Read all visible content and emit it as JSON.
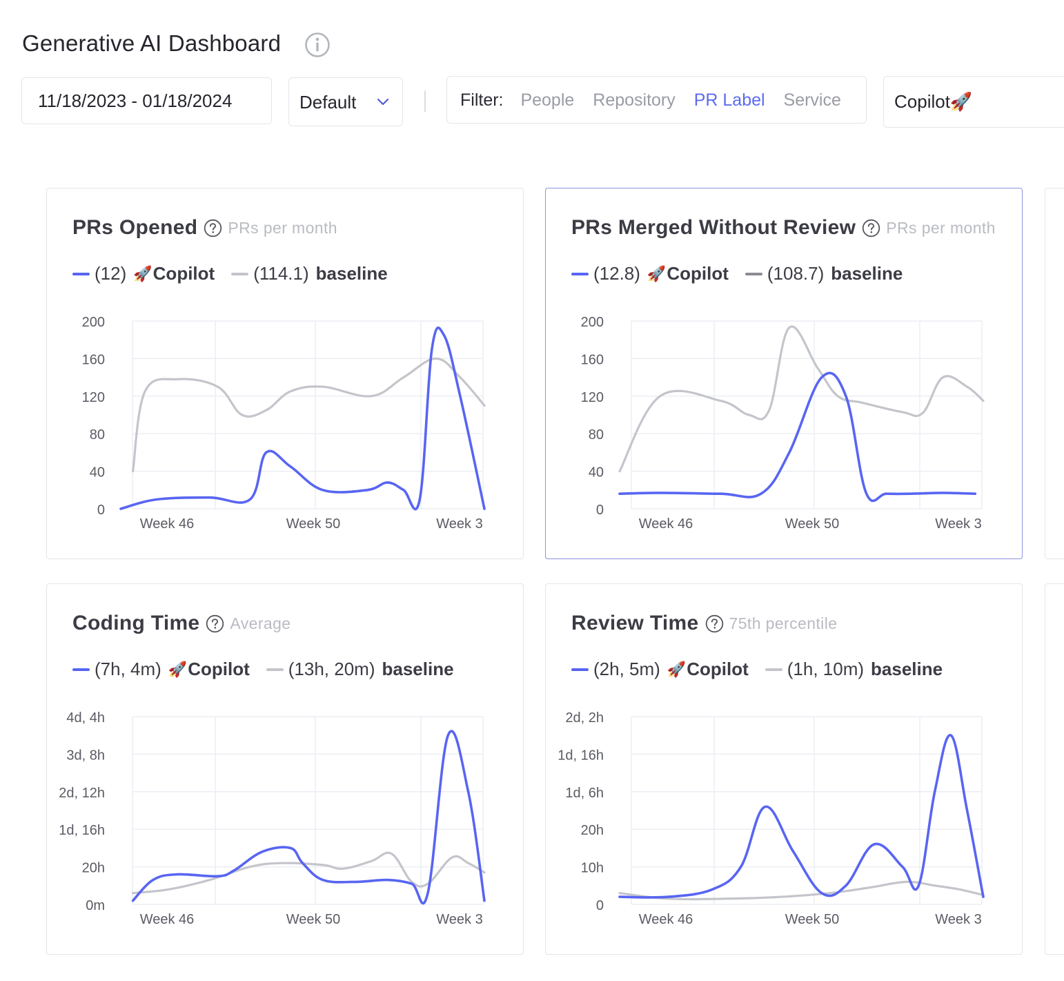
{
  "header": {
    "title": "Generative AI Dashboard",
    "date_range": "11/18/2023 - 01/18/2024",
    "preset": "Default",
    "filter_label": "Filter:",
    "filter_tabs": [
      "People",
      "Repository",
      "PR Label",
      "Service"
    ],
    "active_filter": "PR Label",
    "selected_label": "Copilot🚀"
  },
  "colors": {
    "copilot": "#5865f2",
    "baseline": "#c4c5cb",
    "accent": "#5c6bf0"
  },
  "cards": [
    {
      "title": "PRs Opened",
      "subtitle": "PRs per month",
      "selected": false,
      "legend": [
        {
          "value": "(12)",
          "name": "Copilot",
          "emoji": "🚀",
          "color": "#5865f2"
        },
        {
          "value": "(114.1)",
          "name": "baseline",
          "emoji": "",
          "color": "#c4c5cb"
        }
      ]
    },
    {
      "title": "PRs Merged Without Review",
      "subtitle": "PRs per month",
      "selected": true,
      "legend": [
        {
          "value": "(12.8)",
          "name": "Copilot",
          "emoji": "🚀",
          "color": "#5865f2"
        },
        {
          "value": "(108.7)",
          "name": "baseline",
          "emoji": "",
          "color": "#8a8b92"
        }
      ]
    },
    {
      "title": "Coding Time",
      "subtitle": "Average",
      "selected": false,
      "legend": [
        {
          "value": "(7h, 4m)",
          "name": "Copilot",
          "emoji": "🚀",
          "color": "#5865f2"
        },
        {
          "value": "(13h, 20m)",
          "name": "baseline",
          "emoji": "",
          "color": "#c4c5cb"
        }
      ]
    },
    {
      "title": "Review Time",
      "subtitle": "75th percentile",
      "selected": false,
      "legend": [
        {
          "value": "(2h, 5m)",
          "name": "Copilot",
          "emoji": "🚀",
          "color": "#5865f2"
        },
        {
          "value": "(1h, 10m)",
          "name": "baseline",
          "emoji": "",
          "color": "#c4c5cb"
        }
      ]
    }
  ],
  "chart_data": [
    {
      "type": "line",
      "title": "PRs Opened",
      "x_ticks": [
        "Week 46",
        "Week 50",
        "Week 3"
      ],
      "y_ticks": [
        "0",
        "40",
        "80",
        "120",
        "160",
        "200"
      ],
      "ylim": [
        0,
        200
      ],
      "xlim": [
        0,
        9
      ],
      "series": [
        {
          "name": "Copilot",
          "color": "#5865f2",
          "x": [
            0,
            0.9,
            2.2,
            3.2,
            3.6,
            4.2,
            5.0,
            6.1,
            6.6,
            7.0,
            7.4,
            7.7,
            8.0,
            8.4,
            9.0
          ],
          "y": [
            0,
            10,
            12,
            10,
            60,
            45,
            20,
            20,
            28,
            20,
            10,
            170,
            185,
            120,
            0
          ]
        },
        {
          "name": "baseline",
          "color": "#c4c5cb",
          "x": [
            0.3,
            0.6,
            1.4,
            2.4,
            3.0,
            3.6,
            4.2,
            5.0,
            6.2,
            7.0,
            7.8,
            8.4,
            9.0
          ],
          "y": [
            40,
            125,
            138,
            130,
            100,
            105,
            125,
            130,
            120,
            140,
            160,
            140,
            110
          ]
        }
      ]
    },
    {
      "type": "line",
      "title": "PRs Merged Without Review",
      "x_ticks": [
        "Week 46",
        "Week 50",
        "Week 3"
      ],
      "y_ticks": [
        "0",
        "40",
        "80",
        "120",
        "160",
        "200"
      ],
      "ylim": [
        0,
        200
      ],
      "xlim": [
        0,
        9
      ],
      "series": [
        {
          "name": "Copilot",
          "color": "#5865f2",
          "x": [
            0,
            1.0,
            2.5,
            3.5,
            4.2,
            5.0,
            5.6,
            6.1,
            6.6,
            7.2,
            8.0,
            8.8
          ],
          "y": [
            16,
            17,
            16,
            16,
            60,
            140,
            120,
            17,
            16,
            16,
            17,
            16
          ]
        },
        {
          "name": "baseline",
          "color": "#c4c5cb",
          "x": [
            0,
            1.0,
            2.5,
            3.2,
            3.7,
            4.2,
            4.9,
            5.4,
            6.0,
            7.0,
            7.5,
            8.0,
            8.6,
            9.0
          ],
          "y": [
            40,
            120,
            115,
            100,
            105,
            193,
            150,
            120,
            113,
            103,
            102,
            140,
            130,
            115
          ]
        }
      ]
    },
    {
      "type": "line",
      "title": "Coding Time",
      "x_ticks": [
        "Week 46",
        "Week 50",
        "Week 3"
      ],
      "y_ticks": [
        "0m",
        "20h",
        "1d, 16h",
        "2d, 12h",
        "3d, 8h",
        "4d, 4h"
      ],
      "y_unit": "hours",
      "ylim": [
        0,
        100
      ],
      "xlim": [
        0,
        9
      ],
      "series": [
        {
          "name": "Copilot",
          "color": "#5865f2",
          "x": [
            0.3,
            0.8,
            1.4,
            2.4,
            2.8,
            3.5,
            4.2,
            4.5,
            5.0,
            5.8,
            6.6,
            7.2,
            7.6,
            8.1,
            8.6,
            9.0
          ],
          "y": [
            2,
            13,
            16,
            15,
            18,
            28,
            30,
            22,
            13,
            12,
            13,
            11,
            6,
            90,
            60,
            2
          ]
        },
        {
          "name": "baseline",
          "color": "#c4c5cb",
          "x": [
            0.3,
            1.2,
            2.2,
            3.2,
            4.0,
            5.0,
            5.5,
            6.2,
            6.7,
            7.2,
            7.6,
            8.2,
            8.6,
            9.0
          ],
          "y": [
            6,
            8,
            13,
            20,
            22,
            21,
            19,
            23,
            27,
            12,
            11,
            25,
            22,
            17
          ]
        }
      ]
    },
    {
      "type": "line",
      "title": "Review Time",
      "x_ticks": [
        "Week 46",
        "Week 50",
        "Week 3"
      ],
      "y_ticks": [
        "0",
        "10h",
        "20h",
        "1d, 6h",
        "1d, 16h",
        "2d, 2h"
      ],
      "y_unit": "hours",
      "ylim": [
        0,
        50
      ],
      "xlim": [
        0,
        9
      ],
      "series": [
        {
          "name": "Copilot",
          "color": "#5865f2",
          "x": [
            0,
            1.2,
            2.3,
            3.0,
            3.6,
            4.3,
            5.0,
            5.6,
            6.3,
            7.0,
            7.4,
            7.8,
            8.2,
            8.6,
            9.0
          ],
          "y": [
            2,
            2,
            4,
            10,
            26,
            14,
            3,
            5,
            16,
            10,
            5,
            30,
            45,
            25,
            2
          ]
        },
        {
          "name": "baseline",
          "color": "#c4c5cb",
          "x": [
            0,
            1.2,
            2.6,
            4.0,
            5.2,
            6.2,
            7.1,
            7.8,
            8.4,
            9.0
          ],
          "y": [
            3,
            1.5,
            1.5,
            2,
            3,
            4.5,
            6,
            5,
            4,
            2.5
          ]
        }
      ]
    }
  ]
}
